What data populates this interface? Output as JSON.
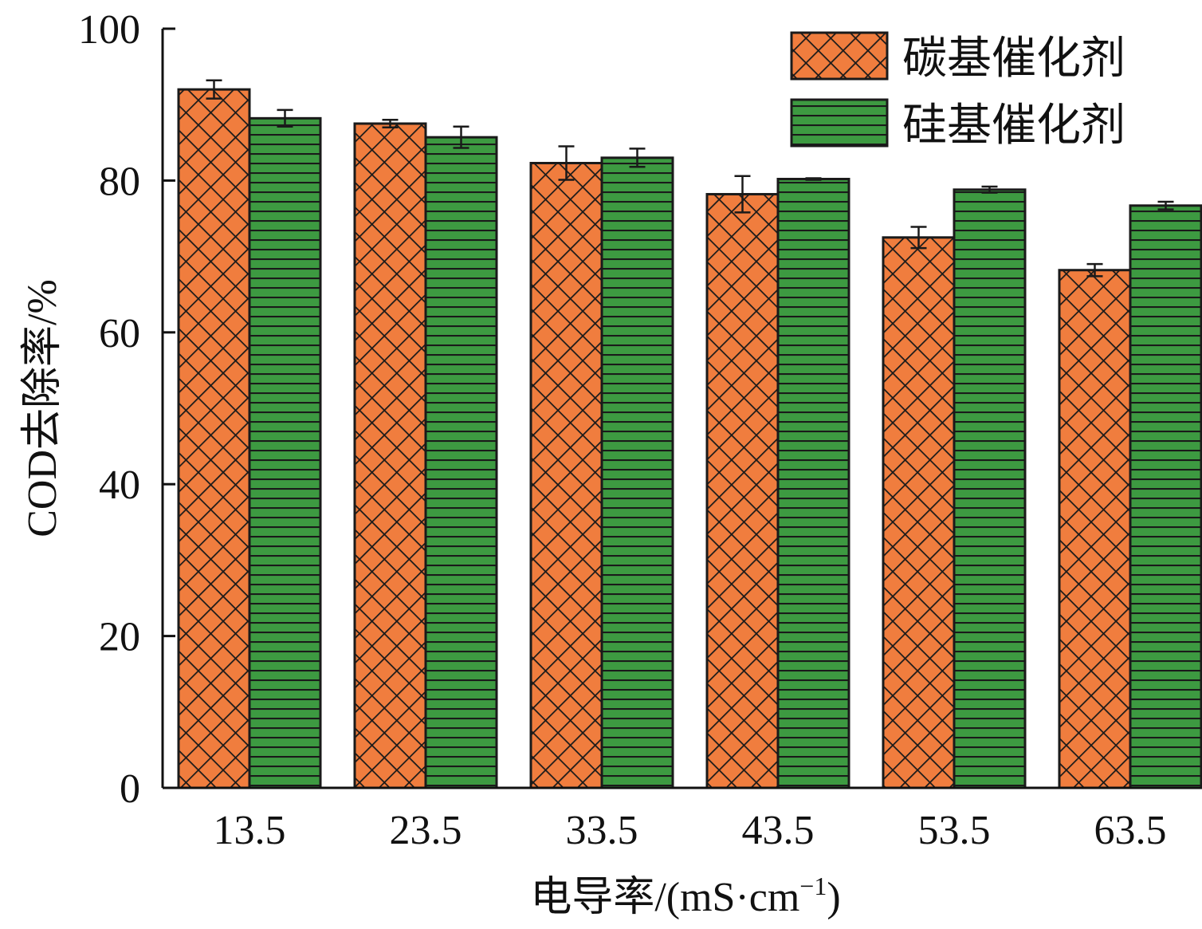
{
  "chart_data": {
    "type": "bar",
    "categories": [
      "13.5",
      "23.5",
      "33.5",
      "43.5",
      "53.5",
      "63.5"
    ],
    "series": [
      {
        "name": "碳基催化剂",
        "values": [
          92.0,
          87.5,
          82.3,
          78.2,
          72.5,
          68.2
        ],
        "errors": [
          1.2,
          0.5,
          2.2,
          2.4,
          1.4,
          0.8
        ],
        "color": "#f07d3e",
        "pattern": "crosshatch"
      },
      {
        "name": "硅基催化剂",
        "values": [
          88.2,
          85.7,
          83.0,
          80.2,
          78.8,
          76.7
        ],
        "errors": [
          1.1,
          1.4,
          1.2,
          0.1,
          0.4,
          0.5
        ],
        "color": "#3d9a41",
        "pattern": "horizontal-lines"
      }
    ],
    "xlabel_main": "电导率/(mS·cm",
    "xlabel_sup": "−1",
    "xlabel_tail": ")",
    "ylabel": "COD去除率/%",
    "ylim": [
      0,
      100
    ],
    "yticks": [
      "0",
      "20",
      "40",
      "60",
      "80",
      "100"
    ],
    "legend_position": "top-right",
    "grid": false
  }
}
